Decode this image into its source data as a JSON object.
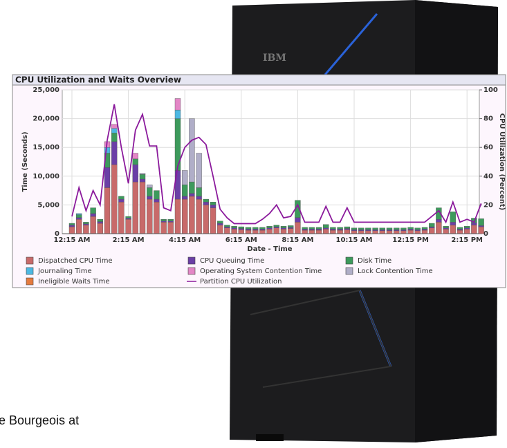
{
  "caption": "e Bourgeois at",
  "server_logo": "IBM",
  "chart_data": {
    "type": "stacked-bar",
    "title": "CPU Utilization and Waits Overview",
    "x_label": "Date - Time",
    "y_label": "Time (Seconds)",
    "y2_label": "CPU Utilization (Percent)",
    "categories": [
      "12:15 AM",
      null,
      null,
      null,
      null,
      null,
      null,
      null,
      "2:15 AM",
      null,
      null,
      null,
      null,
      null,
      null,
      null,
      "4:15 AM",
      null,
      null,
      null,
      null,
      null,
      null,
      null,
      "6:15 AM",
      null,
      null,
      null,
      null,
      null,
      null,
      null,
      "8:15 AM",
      null,
      null,
      null,
      null,
      null,
      null,
      null,
      "10:15 AM",
      null,
      null,
      null,
      null,
      null,
      null,
      null,
      "12:15 PM",
      null,
      null,
      null,
      null,
      null,
      null,
      null,
      "2:15 PM",
      null,
      null
    ],
    "ylim": [
      0,
      25000
    ],
    "yticks": [
      0,
      {
        "value": 5000,
        "label": "5,000"
      },
      {
        "value": 10000,
        "label": "10,000"
      },
      {
        "value": 15000,
        "label": "15,000"
      },
      {
        "value": 20000,
        "label": "20,000"
      },
      {
        "value": 25000,
        "label": "25,000"
      }
    ],
    "y2lim": [
      0,
      100
    ],
    "y2ticks": [
      0,
      20,
      40,
      60,
      80,
      100
    ],
    "grid": true,
    "series": [
      {
        "name": "Dispatched CPU Time",
        "color": "#c86a6a",
        "values": [
          1200,
          2500,
          1500,
          3000,
          1800,
          8000,
          12000,
          5500,
          2500,
          9000,
          9000,
          6000,
          5500,
          2000,
          2000,
          6000,
          6000,
          6500,
          6000,
          5000,
          4500,
          1500,
          1000,
          800,
          700,
          600,
          600,
          600,
          800,
          1000,
          800,
          900,
          2000,
          600,
          600,
          600,
          800,
          600,
          600,
          700,
          500,
          500,
          500,
          500,
          500,
          500,
          500,
          500,
          600,
          500,
          600,
          1000,
          2000,
          800,
          1500,
          600,
          800,
          1500,
          1200
        ]
      },
      {
        "name": "CPU Queuing Time",
        "color": "#6b3fa6",
        "values": [
          300,
          300,
          200,
          500,
          300,
          3500,
          4000,
          500,
          200,
          3000,
          500,
          500,
          500,
          200,
          200,
          5000,
          500,
          500,
          500,
          500,
          500,
          300,
          200,
          200,
          200,
          200,
          200,
          200,
          200,
          200,
          200,
          200,
          800,
          200,
          200,
          200,
          200,
          200,
          200,
          200,
          200,
          200,
          200,
          200,
          200,
          200,
          200,
          200,
          200,
          200,
          200,
          200,
          500,
          200,
          500,
          200,
          200,
          400,
          200
        ]
      },
      {
        "name": "Disk Time",
        "color": "#3d9a5c",
        "values": [
          300,
          500,
          300,
          1000,
          400,
          2500,
          1500,
          500,
          300,
          1000,
          800,
          1500,
          1500,
          300,
          300,
          9000,
          2000,
          2000,
          1500,
          500,
          500,
          400,
          300,
          300,
          300,
          300,
          300,
          300,
          300,
          300,
          300,
          300,
          3000,
          300,
          300,
          300,
          600,
          300,
          300,
          300,
          300,
          300,
          300,
          300,
          300,
          300,
          300,
          300,
          300,
          300,
          300,
          600,
          2000,
          300,
          1800,
          300,
          300,
          800,
          1200
        ]
      },
      {
        "name": "Journaling Time",
        "color": "#4cb8e2",
        "values": [
          0,
          200,
          0,
          0,
          0,
          1000,
          800,
          0,
          0,
          0,
          0,
          0,
          0,
          0,
          0,
          1500,
          0,
          0,
          0,
          0,
          0,
          0,
          0,
          0,
          0,
          0,
          0,
          0,
          0,
          0,
          0,
          0,
          0,
          0,
          0,
          0,
          0,
          0,
          0,
          0,
          0,
          0,
          0,
          0,
          0,
          0,
          0,
          0,
          0,
          0,
          0,
          0,
          0,
          0,
          0,
          0,
          0,
          0,
          0
        ]
      },
      {
        "name": "Operating System Contention Time",
        "color": "#e386c6",
        "values": [
          0,
          0,
          0,
          0,
          0,
          1000,
          700,
          0,
          0,
          1000,
          0,
          0,
          0,
          0,
          0,
          2000,
          0,
          0,
          0,
          0,
          0,
          0,
          0,
          0,
          0,
          0,
          0,
          0,
          0,
          0,
          0,
          0,
          0,
          0,
          0,
          0,
          0,
          0,
          0,
          0,
          0,
          0,
          0,
          0,
          0,
          0,
          0,
          0,
          0,
          0,
          0,
          0,
          0,
          0,
          0,
          0,
          0,
          0,
          0
        ]
      },
      {
        "name": "Lock Contention Time",
        "color": "#b0aec8",
        "values": [
          0,
          0,
          0,
          0,
          0,
          0,
          0,
          0,
          0,
          0,
          200,
          500,
          0,
          0,
          0,
          0,
          2500,
          11000,
          6000,
          0,
          0,
          0,
          0,
          0,
          0,
          0,
          0,
          0,
          0,
          0,
          0,
          0,
          0,
          0,
          0,
          0,
          0,
          0,
          0,
          0,
          0,
          0,
          0,
          0,
          0,
          0,
          0,
          0,
          0,
          0,
          0,
          0,
          0,
          0,
          0,
          0,
          0,
          0,
          0
        ]
      },
      {
        "name": "Ineligible Waits Time",
        "color": "#e57a3e",
        "values": [
          0,
          0,
          0,
          0,
          0,
          0,
          0,
          0,
          0,
          0,
          0,
          0,
          0,
          0,
          0,
          0,
          0,
          0,
          0,
          0,
          0,
          0,
          0,
          0,
          0,
          0,
          0,
          0,
          0,
          0,
          0,
          0,
          0,
          0,
          0,
          0,
          0,
          0,
          0,
          0,
          0,
          0,
          0,
          0,
          0,
          0,
          0,
          0,
          0,
          0,
          0,
          0,
          0,
          0,
          0,
          0,
          0,
          0,
          0
        ]
      },
      {
        "name": "Partition CPU Utilization",
        "color": "#8b1a9c",
        "type": "line",
        "axis": "y2",
        "values": [
          12,
          32,
          16,
          30,
          20,
          65,
          90,
          60,
          35,
          72,
          83,
          61,
          61,
          18,
          16,
          47,
          60,
          65,
          67,
          62,
          40,
          17,
          11,
          7,
          7,
          7,
          7,
          10,
          14,
          20,
          11,
          12,
          20,
          8,
          8,
          8,
          19,
          8,
          8,
          18,
          8,
          8,
          8,
          8,
          8,
          8,
          8,
          8,
          8,
          8,
          8,
          12,
          16,
          8,
          22,
          8,
          10,
          8,
          21
        ]
      }
    ]
  }
}
